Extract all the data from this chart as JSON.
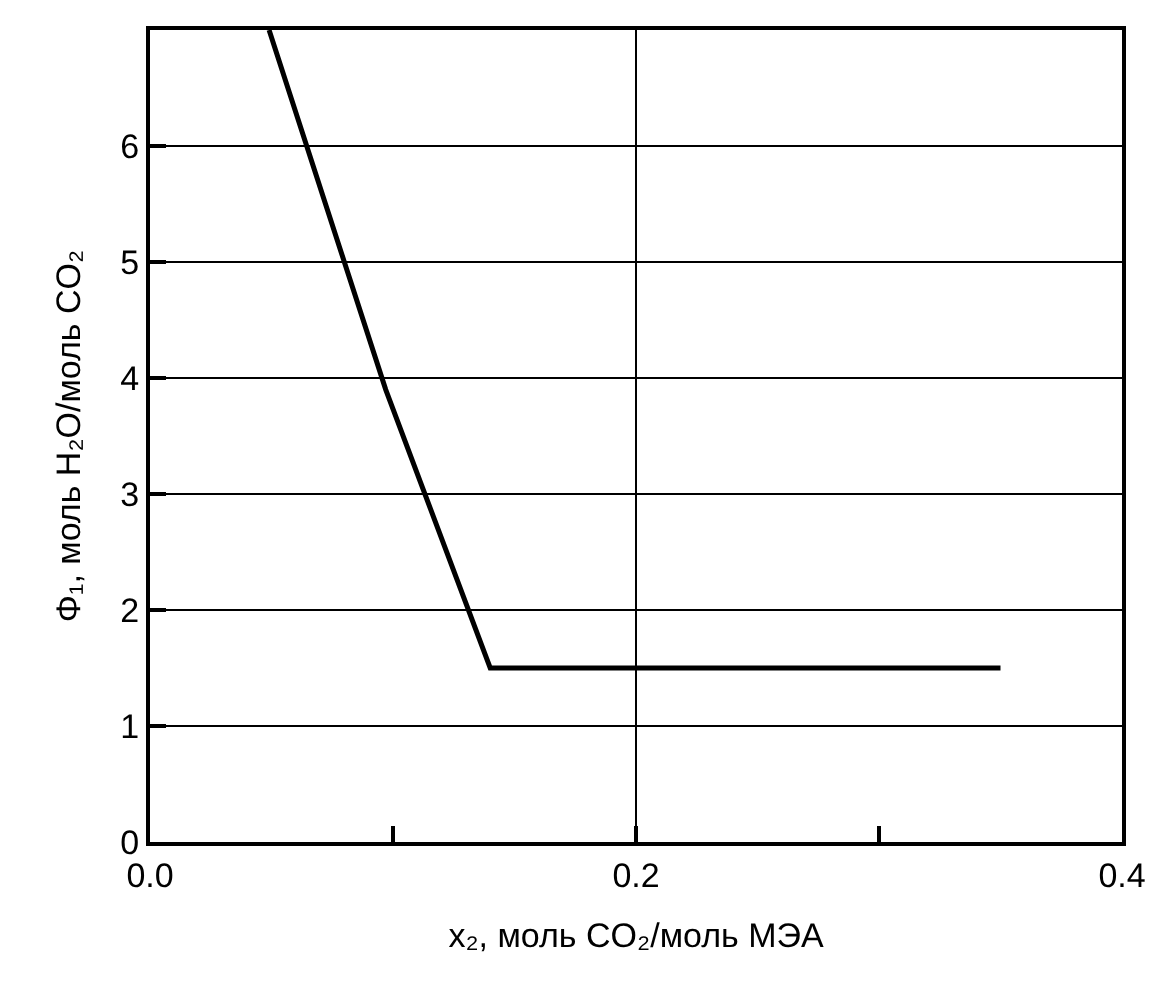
{
  "chart_data": {
    "type": "line",
    "xlabel": "x₂, моль CO₂/моль МЭА",
    "ylabel": "Φ₁, моль H₂O/моль CO₂",
    "x": [
      0.049,
      0.097,
      0.14,
      0.35
    ],
    "series": [
      {
        "color": "#000000",
        "values": [
          7,
          3.9,
          1.5,
          1.5
        ]
      }
    ],
    "xlim": [
      0,
      0.4
    ],
    "xticks": [
      {
        "value": 0,
        "label": "0.0"
      },
      {
        "value": 0.1,
        "label": null
      },
      {
        "value": 0.2,
        "label": "0.2"
      },
      {
        "value": 0.3,
        "label": null
      },
      {
        "value": 0.4,
        "label": "0.4"
      }
    ],
    "ylim": [
      0,
      7
    ],
    "yticks": [
      0,
      1,
      2,
      3,
      4,
      5,
      6
    ],
    "grid": "y",
    "ref_lines": [
      {
        "axis": "x",
        "value": 0.2,
        "color": "#000000"
      }
    ],
    "marker": "none",
    "line_style": "solid"
  }
}
